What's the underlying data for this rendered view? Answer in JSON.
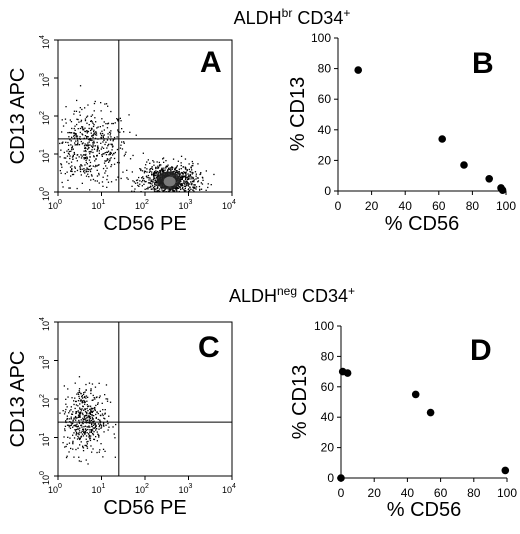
{
  "rows": [
    {
      "title_main": "ALDH",
      "title_sup": "br",
      "title_rest": " CD34",
      "title_plus": "+"
    },
    {
      "title_main": "ALDH",
      "title_sup": "neg",
      "title_rest": " CD34",
      "title_plus": "+"
    }
  ],
  "chart_data": [
    {
      "panel": "A",
      "type": "scatter",
      "title": "",
      "xlabel": "CD56 PE",
      "ylabel": "CD13 APC",
      "xscale": "log",
      "yscale": "log",
      "xlim": [
        1,
        10000
      ],
      "ylim": [
        1,
        10000
      ],
      "x_ticks": [
        {
          "base": "10",
          "exp": "0"
        },
        {
          "base": "10",
          "exp": "1"
        },
        {
          "base": "10",
          "exp": "2"
        },
        {
          "base": "10",
          "exp": "3"
        },
        {
          "base": "10",
          "exp": "4"
        }
      ],
      "y_ticks": [
        {
          "base": "10",
          "exp": "0"
        },
        {
          "base": "10",
          "exp": "1"
        },
        {
          "base": "10",
          "exp": "2"
        },
        {
          "base": "10",
          "exp": "3"
        },
        {
          "base": "10",
          "exp": "4"
        }
      ],
      "gates": {
        "x": 25,
        "y": 25
      },
      "populations": [
        {
          "x_center": 5,
          "y_center": 15,
          "spread": 0.5
        },
        {
          "x_center": 350,
          "y_center": 2,
          "spread": 0.25
        }
      ]
    },
    {
      "panel": "B",
      "type": "scatter",
      "title": "",
      "xlabel": "% CD56",
      "ylabel": "% CD13",
      "xlim": [
        0,
        100
      ],
      "ylim": [
        0,
        100
      ],
      "x_ticks": [
        "0",
        "20",
        "40",
        "60",
        "80",
        "100"
      ],
      "y_ticks": [
        "0",
        "20",
        "40",
        "60",
        "80",
        "100"
      ],
      "points": [
        [
          12,
          79
        ],
        [
          62,
          34
        ],
        [
          75,
          17
        ],
        [
          90,
          8
        ],
        [
          97,
          2
        ],
        [
          98,
          0.5
        ]
      ]
    },
    {
      "panel": "C",
      "type": "scatter",
      "title": "",
      "xlabel": "CD56 PE",
      "ylabel": "CD13 APC",
      "xscale": "log",
      "yscale": "log",
      "xlim": [
        1,
        10000
      ],
      "ylim": [
        1,
        10000
      ],
      "x_ticks": [
        {
          "base": "10",
          "exp": "0"
        },
        {
          "base": "10",
          "exp": "1"
        },
        {
          "base": "10",
          "exp": "2"
        },
        {
          "base": "10",
          "exp": "3"
        },
        {
          "base": "10",
          "exp": "4"
        }
      ],
      "y_ticks": [
        {
          "base": "10",
          "exp": "0"
        },
        {
          "base": "10",
          "exp": "1"
        },
        {
          "base": "10",
          "exp": "2"
        },
        {
          "base": "10",
          "exp": "3"
        },
        {
          "base": "10",
          "exp": "4"
        }
      ],
      "gates": {
        "x": 25,
        "y": 25
      },
      "populations": [
        {
          "x_center": 4,
          "y_center": 30,
          "spread": 0.45
        }
      ]
    },
    {
      "panel": "D",
      "type": "scatter",
      "title": "",
      "xlabel": "% CD56",
      "ylabel": "% CD13",
      "xlim": [
        0,
        100
      ],
      "ylim": [
        0,
        100
      ],
      "x_ticks": [
        "0",
        "20",
        "40",
        "60",
        "80",
        "100"
      ],
      "y_ticks": [
        "0",
        "20",
        "40",
        "60",
        "80",
        "100"
      ],
      "points": [
        [
          0,
          0
        ],
        [
          1,
          70
        ],
        [
          4,
          69
        ],
        [
          45,
          55
        ],
        [
          54,
          43
        ],
        [
          99,
          5
        ]
      ]
    }
  ]
}
